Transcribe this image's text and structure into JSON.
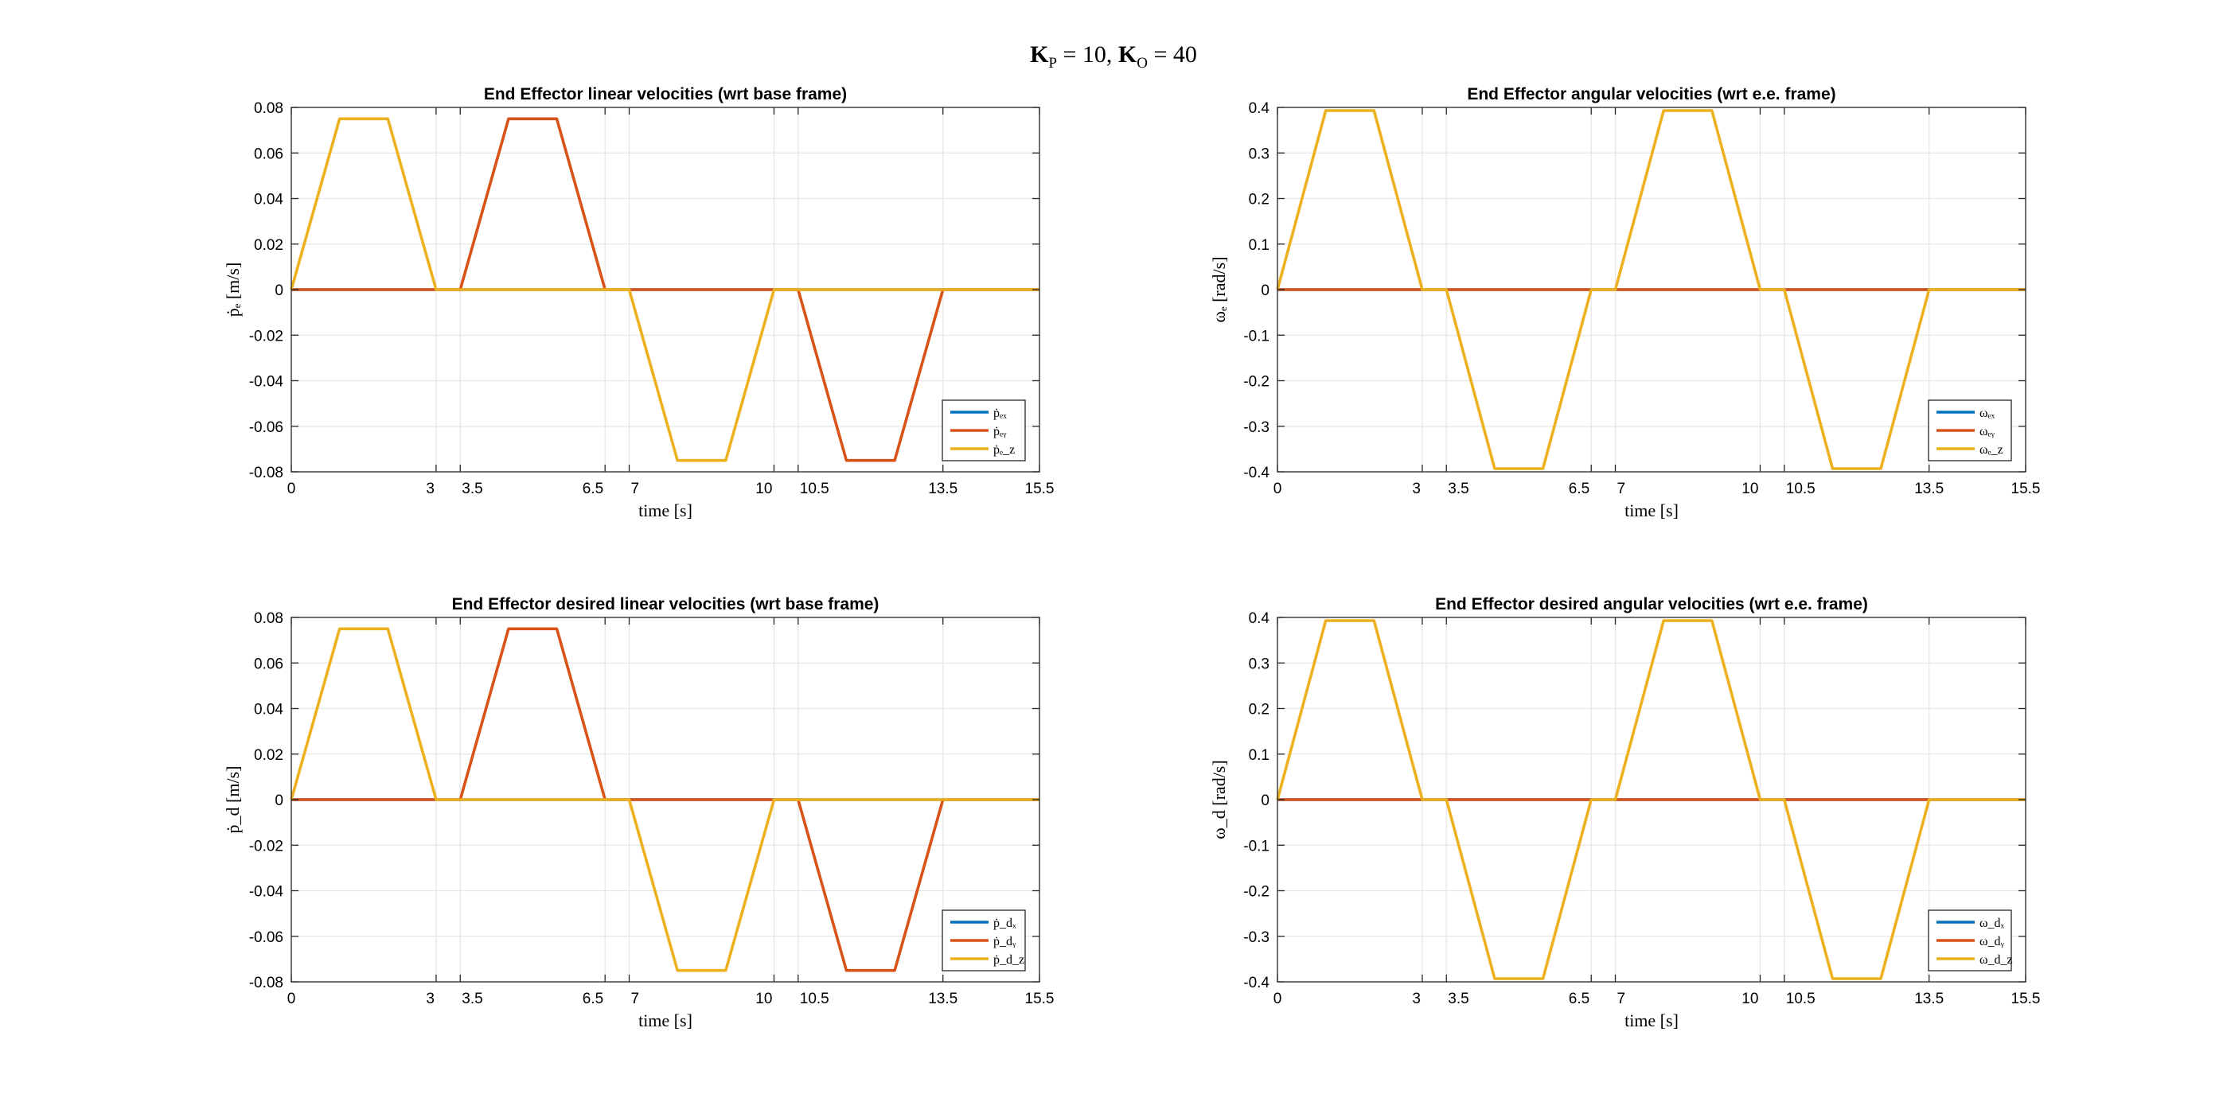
{
  "figure": {
    "title_main": "K",
    "title_sub_p": "P",
    "title_mid": " = 10, ",
    "title_main2": "K",
    "title_sub_o": "O",
    "title_end": " = 40"
  },
  "colors": {
    "x": "#0072BD",
    "y": "#D95319",
    "z": "#EDB120",
    "grid": "#e6e6e6",
    "axes": "#262626"
  },
  "chart_data": [
    {
      "type": "line",
      "title": "End Effector linear velocities (wrt base frame)",
      "xlabel": "time [s]",
      "ylabel": "ṗₑ [m/s]",
      "xlim": [
        0,
        15.5
      ],
      "ylim": [
        -0.08,
        0.08
      ],
      "xticks": [
        0,
        3,
        3.5,
        6.5,
        7,
        10,
        10.5,
        13.5,
        15.5
      ],
      "xtick_labels": [
        "0",
        "3",
        "3.5",
        "6.5",
        "7",
        "10",
        "10.5",
        "13.5",
        "15.5"
      ],
      "yticks": [
        -0.08,
        -0.06,
        -0.04,
        -0.02,
        0,
        0.02,
        0.04,
        0.06,
        0.08
      ],
      "ytick_labels": [
        "-0.08",
        "-0.06",
        "-0.04",
        "-0.02",
        "0",
        "0.02",
        "0.04",
        "0.06",
        "0.08"
      ],
      "grid": true,
      "legend_position": "bottom-right",
      "series": [
        {
          "name": "ṗₑₓ",
          "color": "#0072BD",
          "x": [
            0,
            15.5
          ],
          "y": [
            0,
            0
          ]
        },
        {
          "name": "ṗₑᵧ",
          "color": "#D95319",
          "x": [
            0,
            3,
            3.5,
            4.5,
            5.5,
            6.5,
            7,
            10,
            10.5,
            11.5,
            12.5,
            13.5,
            15.5
          ],
          "y": [
            0,
            0,
            0,
            0.075,
            0.075,
            0,
            0,
            0,
            0,
            -0.075,
            -0.075,
            0,
            0
          ]
        },
        {
          "name": "ṗₑ_z",
          "color": "#EDB120",
          "x": [
            0,
            1,
            2,
            3,
            3.5,
            6.5,
            7,
            8,
            9,
            10,
            15.5
          ],
          "y": [
            0,
            0.075,
            0.075,
            0,
            0,
            0,
            0,
            -0.075,
            -0.075,
            0,
            0
          ]
        }
      ]
    },
    {
      "type": "line",
      "title": "End Effector angular velocities (wrt e.e. frame)",
      "xlabel": "time [s]",
      "ylabel": "ωₑ [rad/s]",
      "xlim": [
        0,
        15.5
      ],
      "ylim": [
        -0.4,
        0.4
      ],
      "xticks": [
        0,
        3,
        3.5,
        6.5,
        7,
        10,
        10.5,
        13.5,
        15.5
      ],
      "xtick_labels": [
        "0",
        "3",
        "3.5",
        "6.5",
        "7",
        "10",
        "10.5",
        "13.5",
        "15.5"
      ],
      "yticks": [
        -0.4,
        -0.3,
        -0.2,
        -0.1,
        0,
        0.1,
        0.2,
        0.3,
        0.4
      ],
      "ytick_labels": [
        "-0.4",
        "-0.3",
        "-0.2",
        "-0.1",
        "0",
        "0.1",
        "0.2",
        "0.3",
        "0.4"
      ],
      "grid": true,
      "legend_position": "bottom-right",
      "series": [
        {
          "name": "ωₑₓ",
          "color": "#0072BD",
          "x": [
            0,
            15.5
          ],
          "y": [
            0,
            0
          ]
        },
        {
          "name": "ωₑᵧ",
          "color": "#D95319",
          "x": [
            0,
            15.5
          ],
          "y": [
            0,
            0
          ]
        },
        {
          "name": "ωₑ_z",
          "color": "#EDB120",
          "x": [
            0,
            1,
            2,
            3,
            3.5,
            4.5,
            5.5,
            6.5,
            7,
            8,
            9,
            10,
            10.5,
            11.5,
            12.5,
            13.5,
            15.5
          ],
          "y": [
            0,
            0.393,
            0.393,
            0,
            0,
            -0.393,
            -0.393,
            0,
            0,
            0.393,
            0.393,
            0,
            0,
            -0.393,
            -0.393,
            0,
            0
          ]
        }
      ]
    },
    {
      "type": "line",
      "title": "End Effector desired linear velocities (wrt base frame)",
      "xlabel": "time [s]",
      "ylabel": "ṗ_d [m/s]",
      "xlim": [
        0,
        15.5
      ],
      "ylim": [
        -0.08,
        0.08
      ],
      "xticks": [
        0,
        3,
        3.5,
        6.5,
        7,
        10,
        10.5,
        13.5,
        15.5
      ],
      "xtick_labels": [
        "0",
        "3",
        "3.5",
        "6.5",
        "7",
        "10",
        "10.5",
        "13.5",
        "15.5"
      ],
      "yticks": [
        -0.08,
        -0.06,
        -0.04,
        -0.02,
        0,
        0.02,
        0.04,
        0.06,
        0.08
      ],
      "ytick_labels": [
        "-0.08",
        "-0.06",
        "-0.04",
        "-0.02",
        "0",
        "0.02",
        "0.04",
        "0.06",
        "0.08"
      ],
      "grid": true,
      "legend_position": "bottom-right",
      "series": [
        {
          "name": "ṗ_dₓ",
          "color": "#0072BD",
          "x": [
            0,
            15.5
          ],
          "y": [
            0,
            0
          ]
        },
        {
          "name": "ṗ_dᵧ",
          "color": "#D95319",
          "x": [
            0,
            3,
            3.5,
            4.5,
            5.5,
            6.5,
            7,
            10,
            10.5,
            11.5,
            12.5,
            13.5,
            15.5
          ],
          "y": [
            0,
            0,
            0,
            0.075,
            0.075,
            0,
            0,
            0,
            0,
            -0.075,
            -0.075,
            0,
            0
          ]
        },
        {
          "name": "ṗ_d_z",
          "color": "#EDB120",
          "x": [
            0,
            1,
            2,
            3,
            3.5,
            6.5,
            7,
            8,
            9,
            10,
            15.5
          ],
          "y": [
            0,
            0.075,
            0.075,
            0,
            0,
            0,
            0,
            -0.075,
            -0.075,
            0,
            0
          ]
        }
      ]
    },
    {
      "type": "line",
      "title": "End Effector desired angular velocities (wrt e.e. frame)",
      "xlabel": "time [s]",
      "ylabel": "ω_d [rad/s]",
      "xlim": [
        0,
        15.5
      ],
      "ylim": [
        -0.4,
        0.4
      ],
      "xticks": [
        0,
        3,
        3.5,
        6.5,
        7,
        10,
        10.5,
        13.5,
        15.5
      ],
      "xtick_labels": [
        "0",
        "3",
        "3.5",
        "6.5",
        "7",
        "10",
        "10.5",
        "13.5",
        "15.5"
      ],
      "yticks": [
        -0.4,
        -0.3,
        -0.2,
        -0.1,
        0,
        0.1,
        0.2,
        0.3,
        0.4
      ],
      "ytick_labels": [
        "-0.4",
        "-0.3",
        "-0.2",
        "-0.1",
        "0",
        "0.1",
        "0.2",
        "0.3",
        "0.4"
      ],
      "grid": true,
      "legend_position": "bottom-right",
      "series": [
        {
          "name": "ω_dₓ",
          "color": "#0072BD",
          "x": [
            0,
            15.5
          ],
          "y": [
            0,
            0
          ]
        },
        {
          "name": "ω_dᵧ",
          "color": "#D95319",
          "x": [
            0,
            15.5
          ],
          "y": [
            0,
            0
          ]
        },
        {
          "name": "ω_d_z",
          "color": "#EDB120",
          "x": [
            0,
            1,
            2,
            3,
            3.5,
            4.5,
            5.5,
            6.5,
            7,
            8,
            9,
            10,
            10.5,
            11.5,
            12.5,
            13.5,
            15.5
          ],
          "y": [
            0,
            0.393,
            0.393,
            0,
            0,
            -0.393,
            -0.393,
            0,
            0,
            0.393,
            0.393,
            0,
            0,
            -0.393,
            -0.393,
            0,
            0
          ]
        }
      ]
    }
  ]
}
